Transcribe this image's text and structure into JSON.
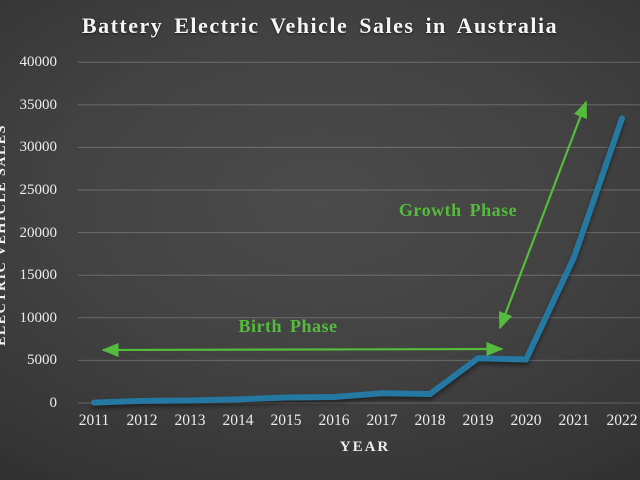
{
  "colors": {
    "background_center": "#4b4b4b",
    "background_edge": "#1e1e1e",
    "text": "#ececec",
    "gridline": "rgba(255,255,255,0.22)",
    "line_blue": "#2478a2",
    "annotation_green": "#55bb3c"
  },
  "chart_data": {
    "type": "line",
    "title": "Battery Electric Vehicle Sales in Australia",
    "xlabel": "YEAR",
    "ylabel": "ELECTRIC VEHICLE SALES",
    "categories": [
      "2011",
      "2012",
      "2013",
      "2014",
      "2015",
      "2016",
      "2017",
      "2018",
      "2019",
      "2020",
      "2021",
      "2022"
    ],
    "values": [
      50,
      250,
      300,
      420,
      650,
      700,
      1150,
      1050,
      5250,
      5100,
      17100,
      33400
    ],
    "ylim": [
      0,
      40000
    ],
    "y_ticks": [
      0,
      5000,
      10000,
      15000,
      20000,
      25000,
      30000,
      35000,
      40000
    ],
    "grid": true,
    "legend": "none",
    "line_color": "#2478a2",
    "annotations": [
      {
        "label": "Birth Phase",
        "type": "double-arrow",
        "orientation": "horizontal",
        "covers": "2011-2019"
      },
      {
        "label": "Growth Phase",
        "type": "double-arrow",
        "orientation": "diagonal",
        "covers": "2019-2022"
      }
    ]
  }
}
